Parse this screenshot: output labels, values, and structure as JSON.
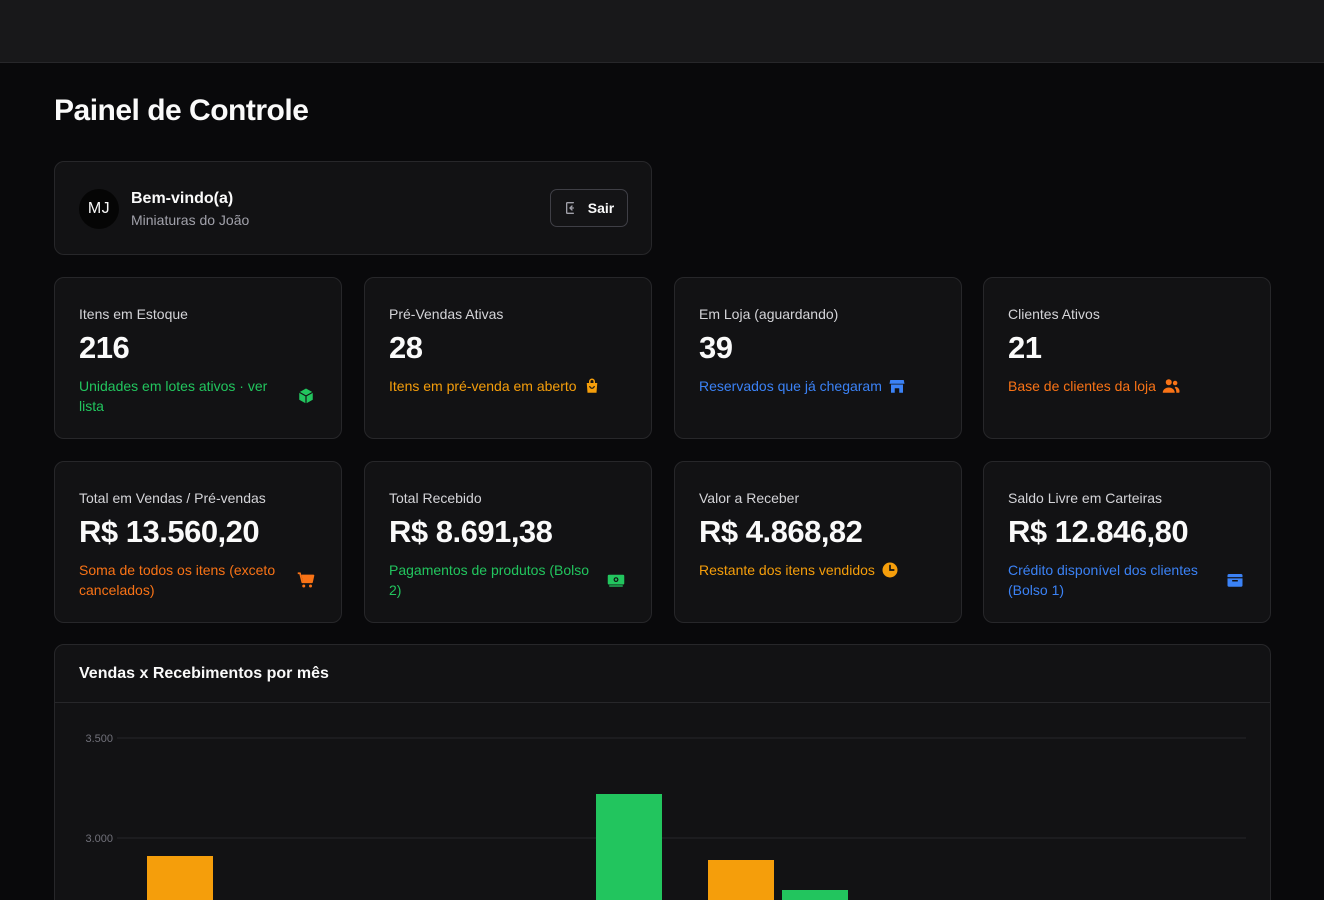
{
  "page": {
    "title": "Painel de Controle"
  },
  "welcome": {
    "avatar_initials": "MJ",
    "title": "Bem-vindo(a)",
    "subtitle": "Miniaturas do João",
    "logout_label": "Sair",
    "logout_icon": "logout-icon"
  },
  "stats": [
    {
      "label": "Itens em Estoque",
      "value": "216",
      "note": "Unidades em lotes ativos · ver lista",
      "icon": "box-icon",
      "color": "#22c55e"
    },
    {
      "label": "Pré-Vendas Ativas",
      "value": "28",
      "note": "Itens em pré-venda em aberto",
      "icon": "shopping-bag-icon",
      "color": "#f59e0b"
    },
    {
      "label": "Em Loja (aguardando)",
      "value": "39",
      "note": "Reservados que já chegaram",
      "icon": "store-icon",
      "color": "#3b82f6"
    },
    {
      "label": "Clientes Ativos",
      "value": "21",
      "note": "Base de clientes da loja",
      "icon": "users-icon",
      "color": "#f97316"
    },
    {
      "label": "Total em Vendas / Pré-vendas",
      "value": "R$ 13.560,20",
      "note": "Soma de todos os itens (exceto cancelados)",
      "icon": "cart-icon",
      "color": "#f97316"
    },
    {
      "label": "Total Recebido",
      "value": "R$ 8.691,38",
      "note": "Pagamentos de produtos (Bolso 2)",
      "icon": "money-icon",
      "color": "#22c55e"
    },
    {
      "label": "Valor a Receber",
      "value": "R$ 4.868,82",
      "note": "Restante dos itens vendidos",
      "icon": "clock-icon",
      "color": "#f59e0b"
    },
    {
      "label": "Saldo Livre em Carteiras",
      "value": "R$ 12.846,80",
      "note": "Crédito disponível dos clientes (Bolso 1)",
      "icon": "wallet-icon",
      "color": "#3b82f6"
    }
  ],
  "chart": {
    "title": "Vendas x Recebimentos por mês"
  },
  "chart_data": {
    "type": "bar",
    "title": "Vendas x Recebimentos por mês",
    "xlabel": "",
    "ylabel": "",
    "ylim": [
      2500,
      3500
    ],
    "yticks": [
      "3.500",
      "3.000"
    ],
    "ytick_values": [
      3500,
      3000
    ],
    "grid": true,
    "series": [
      {
        "color": "#f59e0b",
        "values": [
          2910,
          null,
          null,
          2890
        ]
      },
      {
        "color": "#22c55e",
        "values": [
          null,
          null,
          3220,
          2740
        ]
      }
    ],
    "categories": [
      "",
      "",
      "",
      ""
    ]
  }
}
